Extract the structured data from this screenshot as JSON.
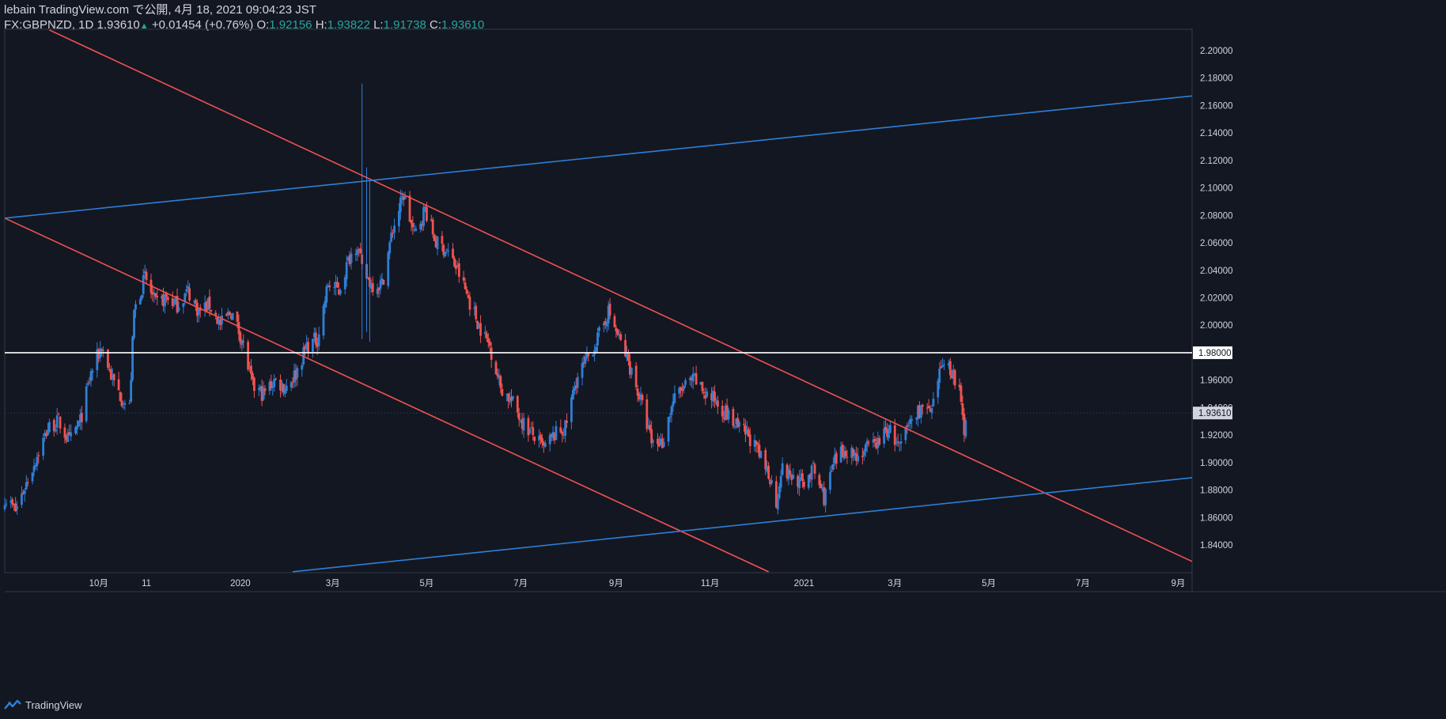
{
  "header": {
    "line1": "lebain TradingView.com で公開, 4月 18, 2021 09:04:23 JST",
    "symbol": "FX:GBPNZD, 1D",
    "close": "1.93610",
    "change": "+0.01454 (+0.76%)",
    "open_label": "O:",
    "open": "1.92156",
    "high_label": "H:",
    "high": "1.93822",
    "low_label": "L:",
    "low": "1.91738",
    "close_label": "C:",
    "close_val": "1.93610"
  },
  "footer": {
    "brand": "TradingView",
    "logo_icon": "tradingview-logo-icon"
  },
  "colors": {
    "background": "#131722",
    "up": "#2f7fd6",
    "down": "#ef5350",
    "trend_blue": "#2f7fd6",
    "trend_red": "#ef5350",
    "grid": "#2a2e39",
    "text": "#d1d4dc",
    "price_tag": "#d1d4dc"
  },
  "chart_data": {
    "type": "candlestick",
    "symbol": "FX:GBPNZD",
    "interval": "1D",
    "y_ticks": [
      "2.20000",
      "2.18000",
      "2.16000",
      "2.14000",
      "2.12000",
      "2.10000",
      "2.08000",
      "2.06000",
      "2.04000",
      "2.02000",
      "2.00000",
      "1.98000",
      "1.96000",
      "1.94000",
      "1.92000",
      "1.90000",
      "1.88000",
      "1.86000",
      "1.84000"
    ],
    "ylim": [
      1.82,
      2.21
    ],
    "x_ticks": [
      {
        "label": "10月",
        "date": "2019-10-01"
      },
      {
        "label": "11",
        "date": "2019-11-01"
      },
      {
        "label": "2020",
        "date": "2020-01-01"
      },
      {
        "label": "3月",
        "date": "2020-03-01"
      },
      {
        "label": "5月",
        "date": "2020-05-01"
      },
      {
        "label": "7月",
        "date": "2020-07-01"
      },
      {
        "label": "9月",
        "date": "2020-09-01"
      },
      {
        "label": "11月",
        "date": "2020-11-01"
      },
      {
        "label": "2021",
        "date": "2021-01-01"
      },
      {
        "label": "3月",
        "date": "2021-03-01"
      },
      {
        "label": "5月",
        "date": "2021-05-01"
      },
      {
        "label": "7月",
        "date": "2021-07-01"
      },
      {
        "label": "9月",
        "date": "2021-09-01"
      }
    ],
    "xlim": [
      "2019-08-01",
      "2021-09-10"
    ],
    "current_price": "1.93610",
    "horizontal_line": {
      "price": 1.98,
      "label": "1.98000"
    },
    "trendlines": [
      {
        "color": "red",
        "from": [
          "2019-08-01",
          2.078
        ],
        "to": [
          "2020-12-09",
          1.8205
        ]
      },
      {
        "color": "red",
        "from": [
          "2019-08-30",
          2.215
        ],
        "to": [
          "2021-09-10",
          1.828
        ]
      },
      {
        "color": "blue",
        "from": [
          "2019-08-01",
          2.078
        ],
        "to": [
          "2021-09-10",
          2.167
        ]
      },
      {
        "color": "blue",
        "from": [
          "2020-02-04",
          1.8205
        ],
        "to": [
          "2021-09-10",
          1.889
        ]
      }
    ],
    "close_path": [
      [
        "2019-08-01",
        1.875
      ],
      [
        "2019-08-08",
        1.865
      ],
      [
        "2019-08-15",
        1.885
      ],
      [
        "2019-08-22",
        1.905
      ],
      [
        "2019-08-29",
        1.925
      ],
      [
        "2019-09-05",
        1.93
      ],
      [
        "2019-09-12",
        1.915
      ],
      [
        "2019-09-19",
        1.93
      ],
      [
        "2019-09-26",
        1.965
      ],
      [
        "2019-10-03",
        1.985
      ],
      [
        "2019-10-10",
        1.96
      ],
      [
        "2019-10-17",
        1.945
      ],
      [
        "2019-10-21",
        1.94
      ],
      [
        "2019-10-24",
        2.01
      ],
      [
        "2019-10-31",
        2.035
      ],
      [
        "2019-11-07",
        2.015
      ],
      [
        "2019-11-14",
        2.02
      ],
      [
        "2019-11-21",
        2.015
      ],
      [
        "2019-11-28",
        2.025
      ],
      [
        "2019-12-05",
        2.01
      ],
      [
        "2019-12-12",
        2.015
      ],
      [
        "2019-12-19",
        2.0
      ],
      [
        "2019-12-26",
        2.01
      ],
      [
        "2020-01-02",
        1.99
      ],
      [
        "2020-01-09",
        1.955
      ],
      [
        "2020-01-16",
        1.95
      ],
      [
        "2020-01-23",
        1.96
      ],
      [
        "2020-01-30",
        1.955
      ],
      [
        "2020-02-06",
        1.965
      ],
      [
        "2020-02-13",
        1.985
      ],
      [
        "2020-02-20",
        1.99
      ],
      [
        "2020-02-27",
        2.03
      ],
      [
        "2020-03-05",
        2.025
      ],
      [
        "2020-03-12",
        2.05
      ],
      [
        "2020-03-17",
        2.06
      ],
      [
        "2020-03-20",
        2.04
      ],
      [
        "2020-03-26",
        2.03
      ],
      [
        "2020-04-02",
        2.03
      ],
      [
        "2020-04-09",
        2.07
      ],
      [
        "2020-04-16",
        2.095
      ],
      [
        "2020-04-23",
        2.065
      ],
      [
        "2020-04-30",
        2.085
      ],
      [
        "2020-05-07",
        2.06
      ],
      [
        "2020-05-14",
        2.055
      ],
      [
        "2020-05-21",
        2.04
      ],
      [
        "2020-05-28",
        2.02
      ],
      [
        "2020-06-04",
        2.0
      ],
      [
        "2020-06-11",
        1.985
      ],
      [
        "2020-06-18",
        1.955
      ],
      [
        "2020-06-25",
        1.945
      ],
      [
        "2020-07-02",
        1.93
      ],
      [
        "2020-07-09",
        1.92
      ],
      [
        "2020-07-16",
        1.91
      ],
      [
        "2020-07-23",
        1.92
      ],
      [
        "2020-07-30",
        1.925
      ],
      [
        "2020-08-06",
        1.96
      ],
      [
        "2020-08-13",
        1.975
      ],
      [
        "2020-08-20",
        1.99
      ],
      [
        "2020-08-27",
        2.01
      ],
      [
        "2020-09-03",
        1.99
      ],
      [
        "2020-09-10",
        1.97
      ],
      [
        "2020-09-17",
        1.945
      ],
      [
        "2020-09-24",
        1.915
      ],
      [
        "2020-10-01",
        1.915
      ],
      [
        "2020-10-08",
        1.945
      ],
      [
        "2020-10-15",
        1.955
      ],
      [
        "2020-10-22",
        1.96
      ],
      [
        "2020-10-29",
        1.95
      ],
      [
        "2020-11-05",
        1.945
      ],
      [
        "2020-11-12",
        1.935
      ],
      [
        "2020-11-19",
        1.925
      ],
      [
        "2020-11-26",
        1.92
      ],
      [
        "2020-12-03",
        1.905
      ],
      [
        "2020-12-10",
        1.89
      ],
      [
        "2020-12-14",
        1.87
      ],
      [
        "2020-12-17",
        1.895
      ],
      [
        "2020-12-24",
        1.89
      ],
      [
        "2020-12-31",
        1.885
      ],
      [
        "2021-01-07",
        1.895
      ],
      [
        "2021-01-14",
        1.875
      ],
      [
        "2021-01-21",
        1.9
      ],
      [
        "2021-01-28",
        1.91
      ],
      [
        "2021-02-04",
        1.905
      ],
      [
        "2021-02-11",
        1.91
      ],
      [
        "2021-02-18",
        1.915
      ],
      [
        "2021-02-25",
        1.925
      ],
      [
        "2021-03-04",
        1.91
      ],
      [
        "2021-03-11",
        1.93
      ],
      [
        "2021-03-18",
        1.94
      ],
      [
        "2021-03-25",
        1.935
      ],
      [
        "2021-04-01",
        1.975
      ],
      [
        "2021-04-08",
        1.965
      ],
      [
        "2021-04-12",
        1.95
      ],
      [
        "2021-04-15",
        1.922
      ],
      [
        "2021-04-16",
        1.9361
      ]
    ],
    "spikes": [
      {
        "date": "2020-03-20",
        "high": 2.176,
        "low": 1.99
      },
      {
        "date": "2020-03-23",
        "high": 2.115,
        "low": 1.995
      },
      {
        "date": "2020-03-25",
        "high": 2.105,
        "low": 1.988
      }
    ]
  }
}
